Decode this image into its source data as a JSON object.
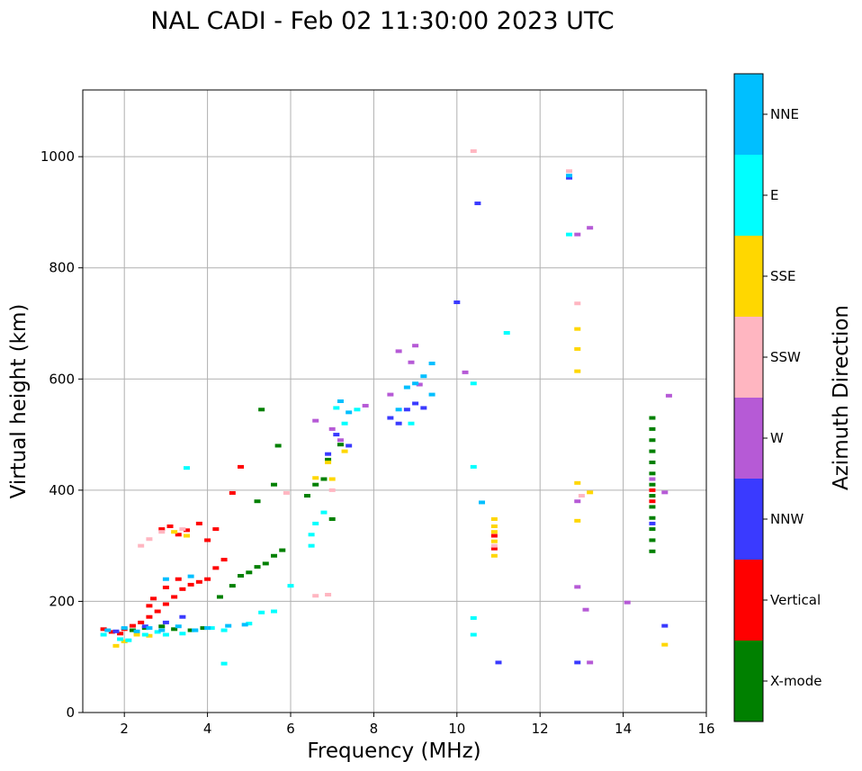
{
  "chart_data": {
    "type": "scatter",
    "title": "NAL CADI - Feb 02 11:30:00 2023 UTC",
    "xlabel": "Frequency (MHz)",
    "ylabel": "Virtual height (km)",
    "xlim": [
      1,
      16
    ],
    "ylim": [
      0,
      1120
    ],
    "xticks": [
      2,
      4,
      6,
      8,
      10,
      12,
      14,
      16
    ],
    "yticks": [
      0,
      200,
      400,
      600,
      800,
      1000
    ],
    "grid": true,
    "colorbar": {
      "label": "Azimuth Direction",
      "categories": [
        {
          "name": "X-mode",
          "color": "#008000"
        },
        {
          "name": "Vertical",
          "color": "#ff0000"
        },
        {
          "name": "NNW",
          "color": "#3a3aff"
        },
        {
          "name": "W",
          "color": "#b65ad6"
        },
        {
          "name": "SSW",
          "color": "#ffb6c1"
        },
        {
          "name": "SSE",
          "color": "#ffd700"
        },
        {
          "name": "E",
          "color": "#00ffff"
        },
        {
          "name": "NNE",
          "color": "#00bfff"
        }
      ]
    },
    "series": [
      {
        "name": "X-mode",
        "points": [
          [
            2.2,
            148
          ],
          [
            2.5,
            152
          ],
          [
            2.9,
            155
          ],
          [
            3.2,
            150
          ],
          [
            3.6,
            148
          ],
          [
            3.9,
            152
          ],
          [
            4.3,
            208
          ],
          [
            4.6,
            228
          ],
          [
            4.8,
            246
          ],
          [
            5.0,
            252
          ],
          [
            5.2,
            262
          ],
          [
            5.4,
            268
          ],
          [
            5.6,
            282
          ],
          [
            5.8,
            292
          ],
          [
            5.2,
            380
          ],
          [
            5.6,
            410
          ],
          [
            5.7,
            480
          ],
          [
            5.3,
            545
          ],
          [
            6.4,
            390
          ],
          [
            6.6,
            410
          ],
          [
            6.8,
            420
          ],
          [
            6.9,
            455
          ],
          [
            7.0,
            348
          ],
          [
            7.2,
            482
          ],
          [
            14.7,
            290
          ],
          [
            14.7,
            310
          ],
          [
            14.7,
            330
          ],
          [
            14.7,
            350
          ],
          [
            14.7,
            370
          ],
          [
            14.7,
            390
          ],
          [
            14.7,
            410
          ],
          [
            14.7,
            430
          ],
          [
            14.7,
            450
          ],
          [
            14.7,
            470
          ],
          [
            14.7,
            490
          ],
          [
            14.7,
            510
          ],
          [
            14.7,
            530
          ]
        ]
      },
      {
        "name": "Vertical",
        "points": [
          [
            1.5,
            150
          ],
          [
            1.7,
            145
          ],
          [
            1.9,
            142
          ],
          [
            2.0,
            150
          ],
          [
            2.2,
            156
          ],
          [
            2.4,
            162
          ],
          [
            2.6,
            172
          ],
          [
            2.8,
            182
          ],
          [
            3.0,
            195
          ],
          [
            3.2,
            208
          ],
          [
            3.4,
            222
          ],
          [
            3.6,
            230
          ],
          [
            3.8,
            235
          ],
          [
            4.0,
            240
          ],
          [
            4.2,
            260
          ],
          [
            4.4,
            275
          ],
          [
            2.9,
            330
          ],
          [
            3.1,
            335
          ],
          [
            3.3,
            320
          ],
          [
            3.5,
            328
          ],
          [
            3.8,
            340
          ],
          [
            4.0,
            310
          ],
          [
            4.2,
            330
          ],
          [
            4.6,
            395
          ],
          [
            4.8,
            442
          ],
          [
            2.6,
            192
          ],
          [
            2.7,
            205
          ],
          [
            3.0,
            225
          ],
          [
            3.3,
            240
          ],
          [
            10.9,
            318
          ],
          [
            10.9,
            295
          ],
          [
            14.7,
            380
          ],
          [
            14.7,
            400
          ]
        ]
      },
      {
        "name": "NNW",
        "points": [
          [
            1.8,
            146
          ],
          [
            2.5,
            155
          ],
          [
            3.0,
            162
          ],
          [
            3.4,
            172
          ],
          [
            6.9,
            465
          ],
          [
            7.1,
            500
          ],
          [
            8.6,
            520
          ],
          [
            8.8,
            545
          ],
          [
            9.0,
            556
          ],
          [
            9.2,
            548
          ],
          [
            10.0,
            738
          ],
          [
            10.5,
            916
          ],
          [
            12.7,
            962
          ],
          [
            12.9,
            90
          ],
          [
            11.0,
            90
          ],
          [
            15.0,
            156
          ],
          [
            14.7,
            340
          ],
          [
            7.4,
            480
          ],
          [
            8.4,
            530
          ]
        ]
      },
      {
        "name": "W",
        "points": [
          [
            6.6,
            525
          ],
          [
            7.0,
            510
          ],
          [
            7.2,
            490
          ],
          [
            7.8,
            552
          ],
          [
            8.4,
            572
          ],
          [
            8.6,
            650
          ],
          [
            8.9,
            630
          ],
          [
            9.0,
            660
          ],
          [
            9.1,
            590
          ],
          [
            10.2,
            612
          ],
          [
            12.9,
            860
          ],
          [
            12.9,
            380
          ],
          [
            12.9,
            226
          ],
          [
            13.1,
            185
          ],
          [
            13.2,
            872
          ],
          [
            13.2,
            90
          ],
          [
            14.1,
            198
          ],
          [
            15.1,
            570
          ],
          [
            15.0,
            396
          ],
          [
            14.7,
            420
          ]
        ]
      },
      {
        "name": "SSW",
        "points": [
          [
            2.4,
            300
          ],
          [
            2.6,
            312
          ],
          [
            2.9,
            325
          ],
          [
            3.4,
            330
          ],
          [
            6.6,
            210
          ],
          [
            6.9,
            212
          ],
          [
            7.0,
            400
          ],
          [
            10.4,
            1010
          ],
          [
            10.9,
            300
          ],
          [
            12.7,
            974
          ],
          [
            12.9,
            736
          ],
          [
            13.0,
            390
          ],
          [
            5.9,
            395
          ]
        ]
      },
      {
        "name": "SSE",
        "points": [
          [
            1.8,
            120
          ],
          [
            2.0,
            128
          ],
          [
            2.3,
            140
          ],
          [
            2.6,
            138
          ],
          [
            3.2,
            325
          ],
          [
            3.5,
            318
          ],
          [
            6.6,
            422
          ],
          [
            6.9,
            450
          ],
          [
            7.0,
            420
          ],
          [
            7.3,
            470
          ],
          [
            10.9,
            348
          ],
          [
            10.9,
            335
          ],
          [
            10.9,
            325
          ],
          [
            10.9,
            308
          ],
          [
            10.9,
            282
          ],
          [
            12.9,
            690
          ],
          [
            12.9,
            654
          ],
          [
            12.9,
            614
          ],
          [
            12.9,
            413
          ],
          [
            12.9,
            345
          ],
          [
            13.2,
            396
          ],
          [
            15.0,
            122
          ]
        ]
      },
      {
        "name": "E",
        "points": [
          [
            1.5,
            140
          ],
          [
            1.9,
            132
          ],
          [
            2.1,
            130
          ],
          [
            2.5,
            140
          ],
          [
            2.8,
            145
          ],
          [
            3.0,
            140
          ],
          [
            3.4,
            142
          ],
          [
            3.7,
            148
          ],
          [
            4.1,
            152
          ],
          [
            4.4,
            148
          ],
          [
            3.5,
            440
          ],
          [
            4.4,
            88
          ],
          [
            5.0,
            160
          ],
          [
            5.3,
            180
          ],
          [
            5.6,
            182
          ],
          [
            6.0,
            228
          ],
          [
            6.5,
            300
          ],
          [
            6.5,
            320
          ],
          [
            6.6,
            340
          ],
          [
            6.8,
            360
          ],
          [
            7.1,
            548
          ],
          [
            7.3,
            520
          ],
          [
            7.6,
            545
          ],
          [
            10.4,
            442
          ],
          [
            10.4,
            592
          ],
          [
            10.4,
            170
          ],
          [
            10.4,
            140
          ],
          [
            11.2,
            683
          ],
          [
            12.7,
            860
          ],
          [
            8.9,
            520
          ]
        ]
      },
      {
        "name": "NNE",
        "points": [
          [
            1.6,
            148
          ],
          [
            2.0,
            152
          ],
          [
            2.3,
            146
          ],
          [
            2.6,
            152
          ],
          [
            2.9,
            148
          ],
          [
            3.3,
            155
          ],
          [
            3.7,
            148
          ],
          [
            4.0,
            152
          ],
          [
            4.5,
            156
          ],
          [
            4.9,
            158
          ],
          [
            3.0,
            240
          ],
          [
            3.6,
            245
          ],
          [
            8.8,
            585
          ],
          [
            9.0,
            592
          ],
          [
            9.2,
            605
          ],
          [
            9.4,
            572
          ],
          [
            9.4,
            628
          ],
          [
            7.2,
            560
          ],
          [
            7.4,
            540
          ],
          [
            8.6,
            545
          ],
          [
            10.6,
            378
          ],
          [
            12.7,
            966
          ]
        ]
      }
    ]
  }
}
